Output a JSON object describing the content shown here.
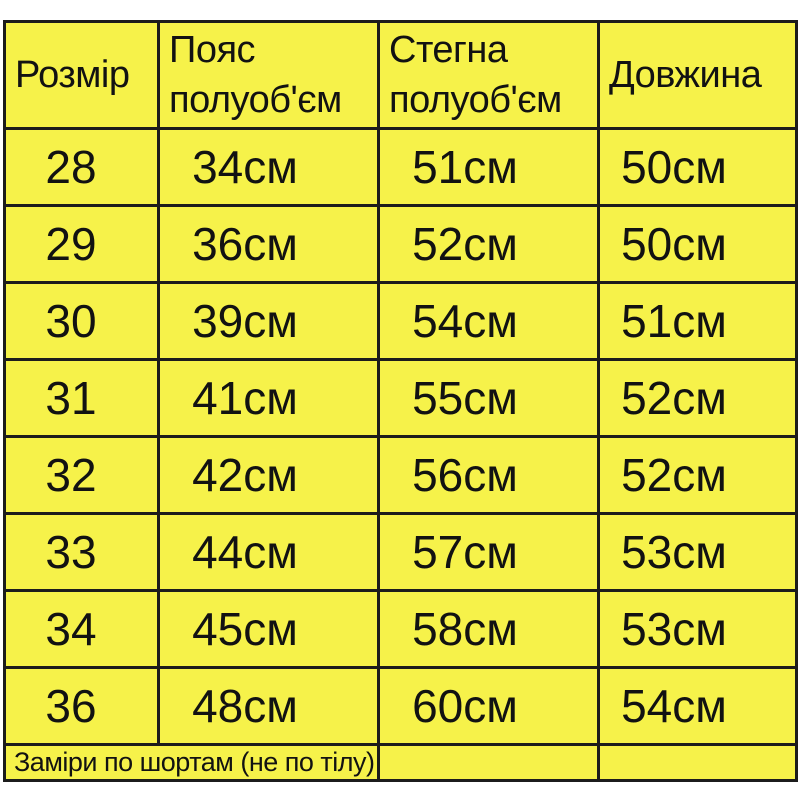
{
  "page": {
    "background": "#ffffff"
  },
  "table": {
    "cell_background": "#f6f24a",
    "border_color": "#1c1c1c",
    "text_color": "#121212"
  },
  "chart_data": {
    "type": "table",
    "columns": [
      "Розмір",
      "Пояс полуоб'єм",
      "Стегна полуоб'єм",
      "Довжина"
    ],
    "column_roles": [
      "size",
      "waist-half-girth",
      "hips-half-girth",
      "length"
    ],
    "rows": [
      [
        "28",
        "34см",
        "51см",
        "50см"
      ],
      [
        "29",
        "36см",
        "52см",
        "50см"
      ],
      [
        "30",
        "39см",
        "54см",
        "51см"
      ],
      [
        "31",
        "41см",
        "55см",
        "52см"
      ],
      [
        "32",
        "42см",
        "56см",
        "52см"
      ],
      [
        "33",
        "44см",
        "57см",
        "53см"
      ],
      [
        "34",
        "45см",
        "58см",
        "53см"
      ],
      [
        "36",
        "48см",
        "60см",
        "54см"
      ]
    ],
    "note": "Заміри по шортам (не по тілу)",
    "units": "см"
  }
}
